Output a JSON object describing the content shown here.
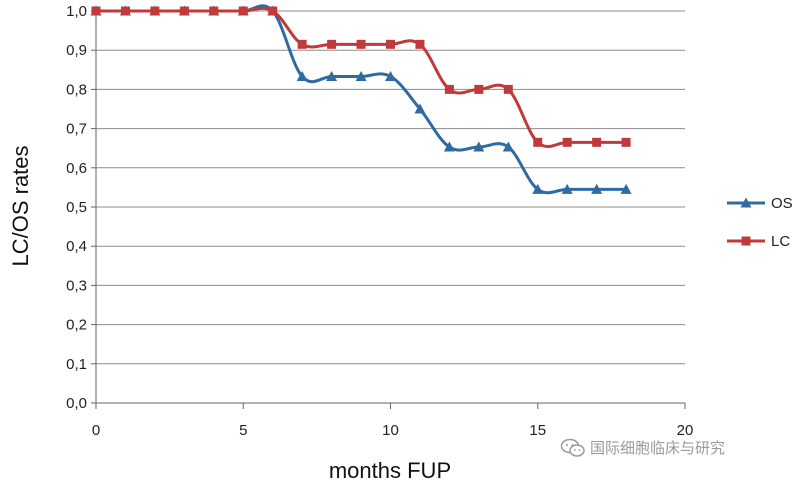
{
  "chart_data": {
    "type": "line",
    "xlabel": "months FUP",
    "ylabel": "LC/OS rates",
    "xlim": [
      0,
      20
    ],
    "ylim": [
      0,
      1.0
    ],
    "x_ticks": [
      "0",
      "5",
      "10",
      "15",
      "20"
    ],
    "y_ticks": [
      "0,0",
      "0,1",
      "0,2",
      "0,3",
      "0,4",
      "0,5",
      "0,6",
      "0,7",
      "0,8",
      "0,9",
      "1,0"
    ],
    "grid": true,
    "legend_position": "right",
    "series": [
      {
        "name": "OS",
        "color": "#2f6aa0",
        "marker": "triangle",
        "x": [
          0,
          1,
          2,
          3,
          4,
          5,
          6,
          7,
          8,
          9,
          10,
          11,
          12,
          13,
          14,
          15,
          16,
          17,
          18
        ],
        "y": [
          1.0,
          1.0,
          1.0,
          1.0,
          1.0,
          1.0,
          1.0,
          0.833,
          0.833,
          0.833,
          0.833,
          0.75,
          0.653,
          0.653,
          0.653,
          0.545,
          0.545,
          0.545,
          0.545
        ]
      },
      {
        "name": "LC",
        "color": "#c0393b",
        "marker": "square",
        "x": [
          0,
          1,
          2,
          3,
          4,
          5,
          6,
          7,
          8,
          9,
          10,
          11,
          12,
          13,
          14,
          15,
          16,
          17,
          18
        ],
        "y": [
          1.0,
          1.0,
          1.0,
          1.0,
          1.0,
          1.0,
          1.0,
          0.915,
          0.915,
          0.915,
          0.915,
          0.915,
          0.8,
          0.8,
          0.8,
          0.665,
          0.665,
          0.665,
          0.665
        ]
      }
    ]
  },
  "watermark": {
    "text": "国际细胞临床与研究",
    "icon": "wechat-icon"
  }
}
